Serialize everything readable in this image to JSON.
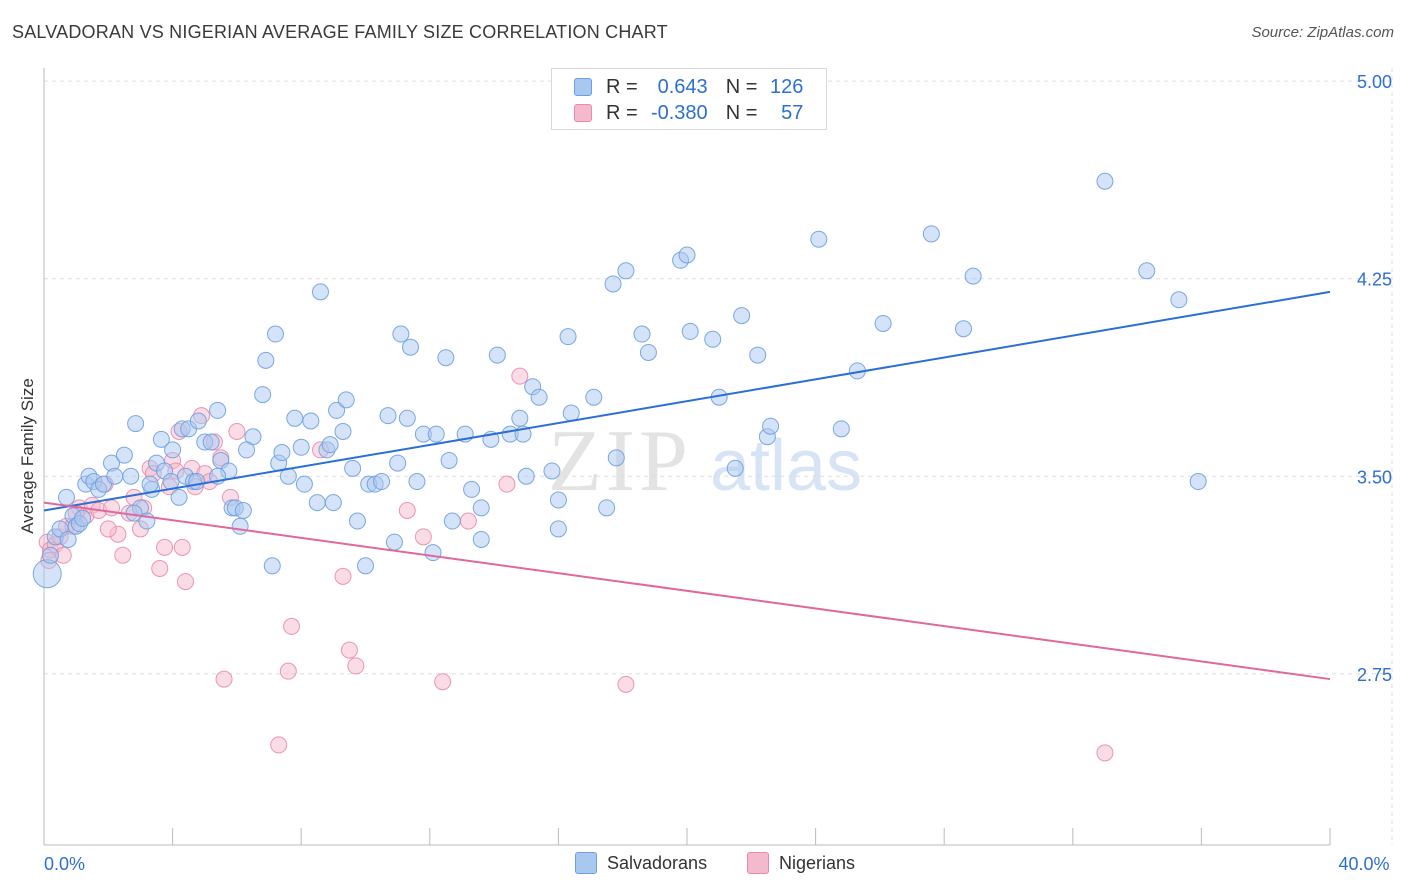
{
  "title": "SALVADORAN VS NIGERIAN AVERAGE FAMILY SIZE CORRELATION CHART",
  "source": "Source: ZipAtlas.com",
  "watermark": {
    "zip": "ZIP",
    "atlas": "atlas"
  },
  "legend": {
    "rows": [
      {
        "r_label": "R =",
        "r_value": "0.643",
        "n_label": "N =",
        "n_value": "126"
      },
      {
        "r_label": "R =",
        "r_value": "-0.380",
        "n_label": "N =",
        "n_value": "57"
      }
    ]
  },
  "colors": {
    "salvadorans_fill": "#a9c8ef",
    "salvadorans_stroke": "#6d9ee0",
    "salvadorans_line": "#2a6fd6",
    "nigerians_fill": "#f5b9cd",
    "nigerians_stroke": "#e98bab",
    "nigerians_line": "#e0689a",
    "axis_label": "#2d6fd1",
    "grid": "#dddddd"
  },
  "chart_data": {
    "type": "scatter",
    "title": "SALVADORAN VS NIGERIAN AVERAGE FAMILY SIZE CORRELATION CHART",
    "xlabel": "",
    "ylabel": "Average Family Size",
    "xlim": [
      0,
      40
    ],
    "ylim": [
      2.1,
      5.05
    ],
    "x_tick_labels": [
      "0.0%",
      "40.0%"
    ],
    "y_ticks": [
      5.0,
      4.25,
      3.5,
      2.75
    ],
    "y_tick_labels": [
      "5.00",
      "4.25",
      "3.50",
      "2.75"
    ],
    "grid": true,
    "legend_position": "top-center and bottom",
    "series": [
      {
        "name": "Salvadorans",
        "r": 0.643,
        "n": 126,
        "trend": {
          "x": [
            0,
            40
          ],
          "y": [
            3.37,
            4.2
          ]
        },
        "points": [
          [
            0.1,
            3.13
          ],
          [
            0.2,
            3.2
          ],
          [
            0.35,
            3.27
          ],
          [
            0.5,
            3.3
          ],
          [
            0.7,
            3.42
          ],
          [
            0.75,
            3.26
          ],
          [
            0.9,
            3.35
          ],
          [
            1.0,
            3.31
          ],
          [
            1.1,
            3.32
          ],
          [
            1.2,
            3.34
          ],
          [
            1.3,
            3.47
          ],
          [
            1.4,
            3.5
          ],
          [
            1.55,
            3.48
          ],
          [
            1.7,
            3.45
          ],
          [
            1.85,
            3.47
          ],
          [
            2.1,
            3.55
          ],
          [
            2.2,
            3.5
          ],
          [
            2.5,
            3.58
          ],
          [
            2.7,
            3.5
          ],
          [
            2.85,
            3.7
          ],
          [
            3.0,
            3.38
          ],
          [
            3.2,
            3.33
          ],
          [
            3.35,
            3.45
          ],
          [
            3.5,
            3.55
          ],
          [
            3.65,
            3.64
          ],
          [
            3.75,
            3.52
          ],
          [
            3.95,
            3.48
          ],
          [
            4.0,
            3.6
          ],
          [
            4.2,
            3.42
          ],
          [
            4.3,
            3.68
          ],
          [
            4.4,
            3.5
          ],
          [
            4.5,
            3.68
          ],
          [
            4.65,
            3.48
          ],
          [
            4.75,
            3.48
          ],
          [
            5.0,
            3.63
          ],
          [
            5.2,
            3.63
          ],
          [
            5.4,
            3.75
          ],
          [
            5.5,
            3.56
          ],
          [
            5.75,
            3.52
          ],
          [
            5.85,
            3.38
          ],
          [
            5.95,
            3.38
          ],
          [
            6.1,
            3.31
          ],
          [
            6.5,
            3.65
          ],
          [
            6.3,
            3.6
          ],
          [
            6.8,
            3.81
          ],
          [
            6.9,
            3.94
          ],
          [
            7.1,
            3.16
          ],
          [
            7.2,
            4.04
          ],
          [
            7.3,
            3.55
          ],
          [
            7.6,
            3.5
          ],
          [
            7.8,
            3.72
          ],
          [
            8.0,
            3.61
          ],
          [
            8.1,
            3.47
          ],
          [
            8.3,
            3.71
          ],
          [
            8.5,
            3.4
          ],
          [
            8.6,
            4.2
          ],
          [
            8.8,
            3.6
          ],
          [
            8.9,
            3.62
          ],
          [
            9.1,
            3.75
          ],
          [
            9.3,
            3.67
          ],
          [
            9.4,
            3.79
          ],
          [
            9.6,
            3.53
          ],
          [
            9.75,
            3.33
          ],
          [
            10.0,
            3.16
          ],
          [
            10.1,
            3.47
          ],
          [
            10.3,
            3.47
          ],
          [
            10.5,
            3.48
          ],
          [
            10.7,
            3.73
          ],
          [
            11.1,
            4.04
          ],
          [
            11.3,
            3.72
          ],
          [
            11.4,
            3.99
          ],
          [
            11.6,
            3.48
          ],
          [
            11.8,
            3.66
          ],
          [
            12.1,
            3.21
          ],
          [
            12.2,
            3.66
          ],
          [
            12.5,
            3.95
          ],
          [
            12.6,
            3.56
          ],
          [
            12.7,
            3.33
          ],
          [
            13.1,
            3.66
          ],
          [
            13.3,
            3.45
          ],
          [
            13.6,
            3.38
          ],
          [
            13.9,
            3.64
          ],
          [
            14.1,
            3.96
          ],
          [
            14.5,
            3.66
          ],
          [
            14.8,
            3.72
          ],
          [
            14.9,
            3.66
          ],
          [
            15.2,
            3.84
          ],
          [
            15.4,
            3.8
          ],
          [
            15.8,
            3.52
          ],
          [
            16.0,
            3.3
          ],
          [
            16.3,
            4.03
          ],
          [
            16.4,
            3.74
          ],
          [
            16.0,
            3.41
          ],
          [
            17.1,
            3.8
          ],
          [
            17.5,
            3.38
          ],
          [
            17.7,
            4.23
          ],
          [
            17.8,
            3.57
          ],
          [
            18.1,
            4.28
          ],
          [
            18.6,
            4.04
          ],
          [
            18.8,
            3.97
          ],
          [
            19.8,
            4.32
          ],
          [
            20.0,
            4.34
          ],
          [
            20.1,
            4.05
          ],
          [
            20.8,
            4.02
          ],
          [
            21.0,
            3.8
          ],
          [
            21.5,
            3.53
          ],
          [
            21.7,
            4.11
          ],
          [
            22.2,
            3.96
          ],
          [
            22.5,
            3.65
          ],
          [
            22.6,
            3.69
          ],
          [
            24.1,
            4.4
          ],
          [
            24.8,
            3.68
          ],
          [
            25.3,
            3.9
          ],
          [
            26.1,
            4.08
          ],
          [
            27.6,
            4.42
          ],
          [
            28.6,
            4.06
          ],
          [
            28.9,
            4.26
          ],
          [
            33.0,
            4.62
          ],
          [
            34.3,
            4.28
          ],
          [
            35.3,
            4.17
          ],
          [
            35.9,
            3.48
          ],
          [
            3.3,
            3.47
          ],
          [
            5.4,
            3.5
          ],
          [
            2.8,
            3.36
          ],
          [
            4.8,
            3.71
          ],
          [
            7.4,
            3.59
          ],
          [
            10.9,
            3.25
          ],
          [
            13.6,
            3.26
          ],
          [
            6.2,
            3.37
          ],
          [
            9.0,
            3.4
          ],
          [
            11.0,
            3.55
          ],
          [
            15.0,
            3.5
          ]
        ]
      },
      {
        "name": "Nigerians",
        "r": -0.38,
        "n": 57,
        "trend": {
          "x": [
            0,
            40
          ],
          "y": [
            3.4,
            2.73
          ]
        },
        "points": [
          [
            0.1,
            3.25
          ],
          [
            0.2,
            3.22
          ],
          [
            0.35,
            3.24
          ],
          [
            0.5,
            3.27
          ],
          [
            0.7,
            3.31
          ],
          [
            0.9,
            3.31
          ],
          [
            1.1,
            3.38
          ],
          [
            1.3,
            3.35
          ],
          [
            1.5,
            3.39
          ],
          [
            1.7,
            3.37
          ],
          [
            1.9,
            3.47
          ],
          [
            2.1,
            3.38
          ],
          [
            2.3,
            3.28
          ],
          [
            2.45,
            3.2
          ],
          [
            2.65,
            3.36
          ],
          [
            2.8,
            3.42
          ],
          [
            3.0,
            3.3
          ],
          [
            3.1,
            3.38
          ],
          [
            3.3,
            3.53
          ],
          [
            3.4,
            3.51
          ],
          [
            3.6,
            3.15
          ],
          [
            3.75,
            3.23
          ],
          [
            3.9,
            3.46
          ],
          [
            4.0,
            3.56
          ],
          [
            4.1,
            3.52
          ],
          [
            4.2,
            3.67
          ],
          [
            4.3,
            3.23
          ],
          [
            4.4,
            3.1
          ],
          [
            4.6,
            3.53
          ],
          [
            4.7,
            3.46
          ],
          [
            4.9,
            3.73
          ],
          [
            5.0,
            3.51
          ],
          [
            5.15,
            3.48
          ],
          [
            5.3,
            3.63
          ],
          [
            5.5,
            3.57
          ],
          [
            5.8,
            3.42
          ],
          [
            7.3,
            2.48
          ],
          [
            7.6,
            2.76
          ],
          [
            7.7,
            2.93
          ],
          [
            8.6,
            3.6
          ],
          [
            9.3,
            3.12
          ],
          [
            9.5,
            2.84
          ],
          [
            9.7,
            2.78
          ],
          [
            11.3,
            3.37
          ],
          [
            11.8,
            3.27
          ],
          [
            12.4,
            2.72
          ],
          [
            13.2,
            3.33
          ],
          [
            14.4,
            3.47
          ],
          [
            14.8,
            3.88
          ],
          [
            18.1,
            2.71
          ],
          [
            0.15,
            3.18
          ],
          [
            0.6,
            3.2
          ],
          [
            1.0,
            3.36
          ],
          [
            2.0,
            3.3
          ],
          [
            5.6,
            2.73
          ],
          [
            33.0,
            2.45
          ],
          [
            6.0,
            3.67
          ]
        ]
      }
    ]
  }
}
